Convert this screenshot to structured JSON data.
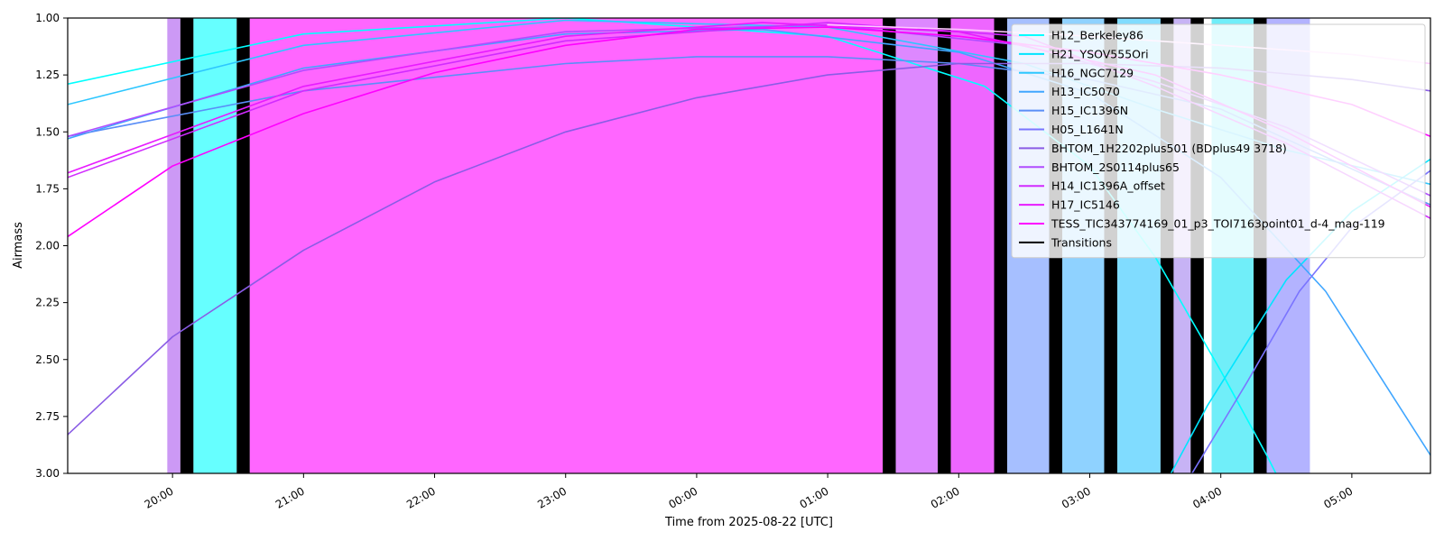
{
  "chart_data": {
    "type": "line",
    "title": "",
    "xlabel": "Time from 2025-08-22 [UTC]",
    "ylabel": "Airmass",
    "xlim": [
      -4.8,
      5.6
    ],
    "ylim": [
      3.0,
      1.0
    ],
    "y_inverted": true,
    "grid": false,
    "legend_position": "top-right",
    "x_tick_labels": [
      {
        "hour": -4,
        "label": "20:00"
      },
      {
        "hour": -3,
        "label": "21:00"
      },
      {
        "hour": -2,
        "label": "22:00"
      },
      {
        "hour": -1,
        "label": "23:00"
      },
      {
        "hour": 0,
        "label": "00:00"
      },
      {
        "hour": 1,
        "label": "01:00"
      },
      {
        "hour": 2,
        "label": "02:00"
      },
      {
        "hour": 3,
        "label": "03:00"
      },
      {
        "hour": 4,
        "label": "04:00"
      },
      {
        "hour": 5,
        "label": "05:00"
      }
    ],
    "y_ticks": [
      {
        "value": 1.0,
        "label": "1.00"
      },
      {
        "value": 1.25,
        "label": "1.25"
      },
      {
        "value": 1.5,
        "label": "1.50"
      },
      {
        "value": 1.75,
        "label": "1.75"
      },
      {
        "value": 2.0,
        "label": "2.00"
      },
      {
        "value": 2.25,
        "label": "2.25"
      },
      {
        "value": 2.5,
        "label": "2.50"
      },
      {
        "value": 2.75,
        "label": "2.75"
      },
      {
        "value": 3.0,
        "label": "3.00"
      }
    ],
    "shaded_intervals": [
      {
        "start": -4.04,
        "end": -3.94,
        "color": "#cc99f5"
      },
      {
        "start": -3.94,
        "end": -3.84,
        "color": "#000000"
      },
      {
        "start": -3.84,
        "end": -3.51,
        "color": "#66ffff"
      },
      {
        "start": -3.51,
        "end": -3.41,
        "color": "#000000"
      },
      {
        "start": -3.41,
        "end": 1.42,
        "color": "#ff66ff"
      },
      {
        "start": 1.42,
        "end": 1.52,
        "color": "#000000"
      },
      {
        "start": 1.52,
        "end": 1.84,
        "color": "#dd88ff"
      },
      {
        "start": 1.84,
        "end": 1.94,
        "color": "#000000"
      },
      {
        "start": 1.94,
        "end": 2.27,
        "color": "#ee66ff"
      },
      {
        "start": 2.27,
        "end": 2.37,
        "color": "#000000"
      },
      {
        "start": 2.37,
        "end": 2.69,
        "color": "#a6bfff"
      },
      {
        "start": 2.69,
        "end": 2.79,
        "color": "#000000"
      },
      {
        "start": 2.79,
        "end": 3.11,
        "color": "#8fd2ff"
      },
      {
        "start": 3.11,
        "end": 3.21,
        "color": "#000000"
      },
      {
        "start": 3.21,
        "end": 3.54,
        "color": "#80dcff"
      },
      {
        "start": 3.54,
        "end": 3.64,
        "color": "#000000"
      },
      {
        "start": 3.64,
        "end": 3.77,
        "color": "#c7b3f5"
      },
      {
        "start": 3.77,
        "end": 3.87,
        "color": "#000000"
      },
      {
        "start": 3.93,
        "end": 4.25,
        "color": "#70eef9"
      },
      {
        "start": 4.25,
        "end": 4.35,
        "color": "#000000"
      },
      {
        "start": 4.35,
        "end": 4.68,
        "color": "#b3b3ff"
      }
    ],
    "series": [
      {
        "name": "H12_Berkeley86",
        "color": "#00ffff",
        "points": [
          [
            -4.8,
            1.29
          ],
          [
            -3.0,
            1.07
          ],
          [
            -1.0,
            1.0
          ],
          [
            1.0,
            1.08
          ],
          [
            2.2,
            1.3
          ],
          [
            3.0,
            1.65
          ],
          [
            3.5,
            2.05
          ],
          [
            4.0,
            2.55
          ],
          [
            4.35,
            2.92
          ],
          [
            4.42,
            3.0
          ]
        ]
      },
      {
        "name": "H21_YSOV555Ori",
        "color": "#00e5ff",
        "points": [
          [
            3.62,
            3.0
          ],
          [
            3.9,
            2.7
          ],
          [
            4.5,
            2.15
          ],
          [
            5.0,
            1.85
          ],
          [
            5.6,
            1.62
          ]
        ]
      },
      {
        "name": "H16_NGC7129",
        "color": "#2dc7ff",
        "points": [
          [
            -4.8,
            1.38
          ],
          [
            -3.0,
            1.12
          ],
          [
            -1.0,
            1.01
          ],
          [
            1.0,
            1.04
          ],
          [
            2.5,
            1.2
          ],
          [
            3.5,
            1.4
          ],
          [
            4.5,
            1.58
          ],
          [
            5.6,
            1.73
          ]
        ]
      },
      {
        "name": "H13_IC5070",
        "color": "#40a6ff",
        "points": [
          [
            -4.8,
            1.53
          ],
          [
            -3.0,
            1.22
          ],
          [
            -1.0,
            1.07
          ],
          [
            0.5,
            1.05
          ],
          [
            2.0,
            1.15
          ],
          [
            3.0,
            1.33
          ],
          [
            4.0,
            1.7
          ],
          [
            4.8,
            2.2
          ],
          [
            5.6,
            2.92
          ]
        ]
      },
      {
        "name": "H15_IC1396N",
        "color": "#5a8ef7",
        "points": [
          [
            -4.8,
            1.52
          ],
          [
            -3.0,
            1.32
          ],
          [
            -1.0,
            1.2
          ],
          [
            0.0,
            1.17
          ],
          [
            1.0,
            1.17
          ],
          [
            2.0,
            1.2
          ],
          [
            3.0,
            1.27
          ],
          [
            4.0,
            1.4
          ],
          [
            5.6,
            1.82
          ]
        ]
      },
      {
        "name": "H05_L1641N",
        "color": "#7a74ff",
        "points": [
          [
            3.78,
            3.0
          ],
          [
            4.2,
            2.6
          ],
          [
            4.6,
            2.2
          ],
          [
            5.0,
            1.92
          ],
          [
            5.6,
            1.67
          ]
        ]
      },
      {
        "name": "BHTOM_1H2202plus501 (BDplus49 3718)",
        "color": "#8a5ce5",
        "points": [
          [
            -4.8,
            2.83
          ],
          [
            -4.0,
            2.4
          ],
          [
            -3.0,
            2.02
          ],
          [
            -2.0,
            1.72
          ],
          [
            -1.0,
            1.5
          ],
          [
            0.0,
            1.35
          ],
          [
            1.0,
            1.25
          ],
          [
            2.0,
            1.2
          ],
          [
            3.0,
            1.2
          ],
          [
            4.0,
            1.22
          ],
          [
            5.0,
            1.27
          ],
          [
            5.6,
            1.32
          ]
        ]
      },
      {
        "name": "BHTOM_2S0114plus65",
        "color": "#b04dff",
        "points": [
          [
            -4.8,
            1.52
          ],
          [
            -3.0,
            1.23
          ],
          [
            -1.0,
            1.06
          ],
          [
            1.0,
            1.03
          ],
          [
            2.5,
            1.12
          ],
          [
            3.5,
            1.28
          ],
          [
            4.5,
            1.48
          ],
          [
            5.6,
            1.78
          ]
        ]
      },
      {
        "name": "H14_IC1396A_offset",
        "color": "#d12bff",
        "points": [
          [
            -4.8,
            1.7
          ],
          [
            -3.0,
            1.32
          ],
          [
            -1.0,
            1.1
          ],
          [
            1.0,
            1.02
          ],
          [
            2.5,
            1.08
          ],
          [
            3.5,
            1.3
          ],
          [
            4.5,
            1.55
          ],
          [
            5.6,
            1.88
          ]
        ]
      },
      {
        "name": "H17_IC5146",
        "color": "#e81bff",
        "points": [
          [
            -4.8,
            1.68
          ],
          [
            -3.0,
            1.3
          ],
          [
            -1.0,
            1.08
          ],
          [
            0.5,
            1.02
          ],
          [
            2.0,
            1.06
          ],
          [
            3.5,
            1.25
          ],
          [
            4.5,
            1.5
          ],
          [
            5.6,
            1.83
          ]
        ]
      },
      {
        "name": "TESS_TIC343774169_01_p3_TOI7163point01_d-4_mag-119",
        "color": "#ff00ff",
        "points": [
          [
            -4.8,
            1.96
          ],
          [
            -4.0,
            1.65
          ],
          [
            -3.0,
            1.42
          ],
          [
            -2.0,
            1.24
          ],
          [
            -1.0,
            1.12
          ],
          [
            0.0,
            1.05
          ],
          [
            1.0,
            1.04
          ],
          [
            2.0,
            1.08
          ],
          [
            3.0,
            1.15
          ],
          [
            4.0,
            1.25
          ],
          [
            5.0,
            1.38
          ],
          [
            5.6,
            1.52
          ]
        ]
      },
      {
        "name": "H08_pink_tail",
        "color": "#ffc7ff",
        "legend": false,
        "points": [
          [
            1.0,
            1.03
          ],
          [
            2.0,
            1.05
          ],
          [
            3.0,
            1.08
          ],
          [
            4.0,
            1.12
          ],
          [
            5.0,
            1.16
          ],
          [
            5.6,
            1.2
          ]
        ]
      }
    ],
    "legend": [
      {
        "label": "H12_Berkeley86",
        "color": "#00ffff"
      },
      {
        "label": "H21_YSOV555Ori",
        "color": "#00e5ff"
      },
      {
        "label": "H16_NGC7129",
        "color": "#2dc7ff"
      },
      {
        "label": "H13_IC5070",
        "color": "#40a6ff"
      },
      {
        "label": "H15_IC1396N",
        "color": "#5a8ef7"
      },
      {
        "label": "H05_L1641N",
        "color": "#7a74ff"
      },
      {
        "label": "BHTOM_1H2202plus501 (BDplus49 3718)",
        "color": "#8a5ce5"
      },
      {
        "label": "BHTOM_2S0114plus65",
        "color": "#b04dff"
      },
      {
        "label": "H14_IC1396A_offset",
        "color": "#d12bff"
      },
      {
        "label": "H17_IC5146",
        "color": "#e81bff"
      },
      {
        "label": "TESS_TIC343774169_01_p3_TOI7163point01_d-4_mag-119",
        "color": "#ff00ff"
      },
      {
        "label": "Transitions",
        "color": "#000000"
      }
    ]
  }
}
